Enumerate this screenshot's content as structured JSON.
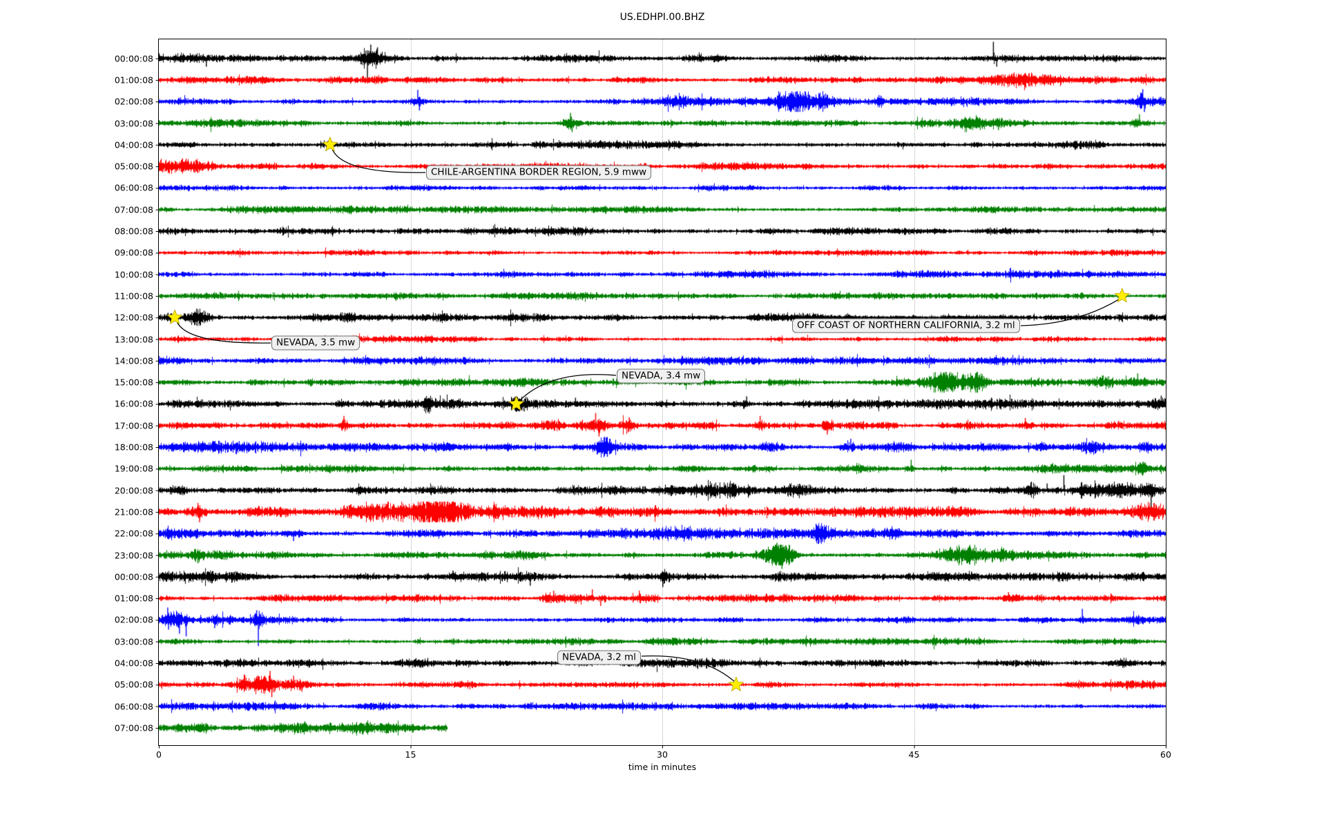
{
  "title": "US.EDHPI.00.BHZ",
  "colors": {
    "trace_cycle": [
      "#000000",
      "#ff0000",
      "#0000ff",
      "#008000"
    ],
    "event_star": "#ffee00",
    "event_star_edge": "#b8a200",
    "annotation_bg": "#f0f0f0",
    "annotation_border": "#6f6f6f",
    "grid": "#b4b4b4"
  },
  "chart_data": {
    "type": "line",
    "subtype": "seismic-dayplot-helicorder",
    "title": "US.EDHPI.00.BHZ",
    "xlabel": "time in minutes",
    "x_range_minutes": [
      0,
      60
    ],
    "x_ticks": [
      0,
      15,
      30,
      45,
      60
    ],
    "grid": "vertical-dotted",
    "trace_colors": [
      "#000000",
      "#ff0000",
      "#0000ff",
      "#008000"
    ],
    "events": [
      {
        "label": "CHILE-ARGENTINA BORDER REGION, 5.9 mww",
        "row": 4,
        "row_time": "04:00:08",
        "minute": 10.2
      },
      {
        "label": "NEVADA, 3.5 mw",
        "row": 12,
        "row_time": "12:00:08",
        "minute": 0.95
      },
      {
        "label": "OFF COAST OF NORTHERN CALIFORNIA, 3.2 ml",
        "row": 11,
        "row_time": "11:00:08",
        "minute": 57.4
      },
      {
        "label": "NEVADA, 3.4 mw",
        "row": 16,
        "row_time": "16:00:08",
        "minute": 21.3
      },
      {
        "label": "NEVADA, 3.2 ml",
        "row": 29,
        "row_time": "05:00:08",
        "minute": 34.4
      }
    ],
    "rows": [
      {
        "label": "00:00:08",
        "base": 2.6,
        "bursts": [
          [
            1.5,
            3.5,
            1.9
          ],
          [
            12.7,
            1.5,
            2.8
          ],
          [
            24.8,
            2,
            1.5
          ],
          [
            32.8,
            1.8,
            1.5
          ]
        ],
        "spikes": [
          [
            2.8,
            -12
          ],
          [
            12.4,
            -28
          ],
          [
            12.6,
            20
          ],
          [
            13.0,
            16
          ],
          [
            49.7,
            24
          ],
          [
            49.9,
            -12
          ]
        ]
      },
      {
        "label": "01:00:08",
        "base": 2.2,
        "bursts": [
          [
            12.5,
            0.8,
            2.2
          ],
          [
            41,
            1,
            1.5
          ],
          [
            51.5,
            2.5,
            2.0
          ],
          [
            58.8,
            0.8,
            1.8
          ]
        ],
        "spikes": [
          [
            51.2,
            9
          ],
          [
            52.8,
            8
          ]
        ]
      },
      {
        "label": "02:00:08",
        "base": 2.5,
        "bursts": [
          [
            15.4,
            0.6,
            2.6
          ],
          [
            30.5,
            3,
            1.4
          ],
          [
            37.8,
            1.4,
            2.6
          ],
          [
            39.4,
            0.8,
            2.2
          ],
          [
            43,
            0.6,
            2.0
          ],
          [
            58.6,
            0.5,
            2.8
          ]
        ],
        "spikes": [
          [
            15.4,
            17
          ],
          [
            15.5,
            -13
          ],
          [
            37.9,
            14
          ],
          [
            58.6,
            18
          ],
          [
            58.7,
            -15
          ]
        ]
      },
      {
        "label": "03:00:08",
        "base": 2.4,
        "bursts": [
          [
            24.5,
            0.6,
            2.8
          ],
          [
            48.5,
            1.8,
            2.2
          ],
          [
            50,
            0.6,
            2.2
          ],
          [
            58.4,
            0.8,
            2.4
          ]
        ],
        "spikes": [
          [
            24.5,
            15
          ],
          [
            24.6,
            -13
          ],
          [
            50,
            -10
          ],
          [
            58.4,
            13
          ]
        ]
      },
      {
        "label": "04:00:08",
        "base": 2.6,
        "bursts": [
          [
            10.2,
            0.6,
            1.7
          ]
        ],
        "spikes": [
          [
            10.2,
            6
          ]
        ]
      },
      {
        "label": "05:00:08",
        "base": 2.3,
        "bursts": [
          [
            0.8,
            2.2,
            2.6
          ],
          [
            2.6,
            1,
            2.0
          ]
        ],
        "spikes": [
          [
            1.6,
            11
          ],
          [
            2.1,
            -9
          ]
        ]
      },
      {
        "label": "06:00:08",
        "base": 2.2,
        "bursts": [],
        "spikes": []
      },
      {
        "label": "07:00:08",
        "base": 2.2,
        "bursts": [
          [
            11.5,
            1,
            1.4
          ]
        ],
        "spikes": []
      },
      {
        "label": "08:00:08",
        "base": 2.4,
        "bursts": [
          [
            20,
            4,
            1.25
          ],
          [
            24.5,
            1.5,
            1.3
          ]
        ],
        "spikes": []
      },
      {
        "label": "09:00:08",
        "base": 2.0,
        "bursts": [],
        "spikes": []
      },
      {
        "label": "10:00:08",
        "base": 2.2,
        "bursts": [],
        "spikes": []
      },
      {
        "label": "11:00:08",
        "base": 2.2,
        "bursts": [],
        "spikes": []
      },
      {
        "label": "12:00:08",
        "base": 2.6,
        "bursts": [
          [
            2.3,
            0.9,
            2.6
          ],
          [
            0.6,
            0.5,
            1.6
          ]
        ],
        "spikes": [
          [
            2.3,
            10
          ],
          [
            2.4,
            -9
          ]
        ]
      },
      {
        "label": "13:00:08",
        "base": 2.0,
        "bursts": [
          [
            38.5,
            0.6,
            1.8
          ],
          [
            50,
            1,
            1.7
          ]
        ],
        "spikes": []
      },
      {
        "label": "14:00:08",
        "base": 2.4,
        "bursts": [
          [
            0.4,
            1.2,
            2.2
          ],
          [
            7.5,
            0.8,
            1.4
          ]
        ],
        "spikes": []
      },
      {
        "label": "15:00:08",
        "base": 2.6,
        "bursts": [
          [
            46.8,
            1.4,
            3.0
          ],
          [
            48.7,
            0.8,
            2.4
          ],
          [
            56.2,
            0.8,
            2.6
          ],
          [
            58.2,
            1.2,
            2.8
          ]
        ],
        "spikes": [
          [
            46.9,
            15
          ],
          [
            56.2,
            10
          ],
          [
            58.3,
            13
          ]
        ]
      },
      {
        "label": "16:00:08",
        "base": 2.8,
        "bursts": [
          [
            11,
            0.5,
            1.8
          ],
          [
            16,
            0.4,
            2.0
          ],
          [
            21.3,
            0.8,
            1.8
          ],
          [
            25,
            6,
            1.35
          ],
          [
            35,
            0.5,
            1.8
          ],
          [
            59.6,
            0.4,
            2.0
          ]
        ],
        "spikes": [
          [
            16,
            -12
          ],
          [
            21.4,
            -10
          ],
          [
            24.8,
            9
          ],
          [
            35,
            11
          ],
          [
            59.7,
            12
          ]
        ]
      },
      {
        "label": "17:00:08",
        "base": 2.5,
        "bursts": [
          [
            11,
            0.4,
            2.6
          ],
          [
            23.5,
            0.8,
            2.4
          ],
          [
            26,
            1.4,
            2.6
          ],
          [
            28,
            0.6,
            2.2
          ],
          [
            33,
            0.5,
            1.8
          ],
          [
            35.8,
            0.4,
            2.4
          ],
          [
            39.8,
            0.5,
            2.2
          ],
          [
            51.6,
            0.6,
            2.2
          ]
        ],
        "spikes": [
          [
            11,
            14
          ],
          [
            26,
            18
          ],
          [
            26.2,
            -16
          ],
          [
            28,
            12
          ],
          [
            35.8,
            14
          ],
          [
            39.8,
            -13
          ],
          [
            51.6,
            11
          ]
        ]
      },
      {
        "label": "18:00:08",
        "base": 2.7,
        "bursts": [
          [
            3,
            4,
            1.5
          ],
          [
            26.5,
            0.8,
            2.8
          ],
          [
            36.5,
            1,
            1.6
          ],
          [
            41.2,
            0.6,
            1.8
          ],
          [
            44.3,
            1,
            1.8
          ],
          [
            52.6,
            0.8,
            2.0
          ],
          [
            55.6,
            0.8,
            1.8
          ],
          [
            58.8,
            0.5,
            2.0
          ]
        ],
        "spikes": [
          [
            26.5,
            12
          ],
          [
            26.7,
            -14
          ],
          [
            41.2,
            12
          ]
        ]
      },
      {
        "label": "19:00:08",
        "base": 2.4,
        "bursts": [
          [
            41.7,
            0.5,
            1.8
          ],
          [
            44.8,
            0.4,
            2.2
          ],
          [
            46.8,
            0.5,
            1.8
          ],
          [
            52.5,
            1,
            1.5
          ],
          [
            58.6,
            0.6,
            1.8
          ]
        ],
        "spikes": [
          [
            44.8,
            13
          ]
        ]
      },
      {
        "label": "20:00:08",
        "base": 2.9,
        "bursts": [
          [
            1,
            1.5,
            1.5
          ],
          [
            24.5,
            0.8,
            1.4
          ],
          [
            31,
            2.5,
            1.7
          ],
          [
            34,
            2.5,
            1.9
          ],
          [
            37,
            2,
            1.8
          ],
          [
            52,
            0.6,
            2.0
          ],
          [
            55.5,
            1.5,
            2.2
          ],
          [
            57,
            2,
            2.4
          ],
          [
            59.3,
            0.7,
            2.2
          ]
        ],
        "spikes": [
          [
            52.9,
            10
          ],
          [
            53.9,
            22
          ],
          [
            59.1,
            -26
          ]
        ]
      },
      {
        "label": "21:00:08",
        "base": 3.1,
        "bursts": [
          [
            2.3,
            0.8,
            3.2
          ],
          [
            13,
            3,
            1.7
          ],
          [
            16.5,
            2,
            2.4
          ],
          [
            20,
            6,
            1.6
          ],
          [
            30,
            4,
            1.4
          ],
          [
            59,
            1.5,
            2.6
          ]
        ],
        "spikes": [
          [
            2.3,
            13
          ],
          [
            2.4,
            -15
          ]
        ]
      },
      {
        "label": "22:00:08",
        "base": 2.9,
        "bursts": [
          [
            1.5,
            3,
            2.0
          ],
          [
            5.6,
            1,
            2.2
          ],
          [
            8,
            0.8,
            2.4
          ],
          [
            31,
            2,
            1.4
          ],
          [
            39.4,
            0.6,
            2.2
          ],
          [
            44,
            1,
            1.7
          ],
          [
            58,
            1.5,
            2.2
          ]
        ],
        "spikes": [
          [
            8,
            -11
          ],
          [
            39.5,
            -12
          ]
        ]
      },
      {
        "label": "23:00:08",
        "base": 2.7,
        "bursts": [
          [
            2.3,
            0.5,
            2.4
          ],
          [
            14,
            1.5,
            1.7
          ],
          [
            37,
            1.2,
            3.6
          ],
          [
            47.8,
            2,
            2.2
          ],
          [
            50.2,
            0.8,
            2.0
          ],
          [
            58.5,
            0.8,
            1.9
          ]
        ],
        "spikes": [
          [
            2.3,
            -12
          ],
          [
            36.8,
            18
          ],
          [
            37.1,
            -20
          ],
          [
            37.3,
            14
          ]
        ]
      },
      {
        "label": "00:00:08",
        "base": 2.9,
        "bursts": [
          [
            1.5,
            4,
            1.8
          ],
          [
            5.5,
            1,
            2.2
          ],
          [
            22,
            0.4,
            1.8
          ],
          [
            30.1,
            0.4,
            2.0
          ]
        ],
        "spikes": [
          [
            17.5,
            9
          ],
          [
            22.1,
            -13
          ],
          [
            30.0,
            -15
          ]
        ]
      },
      {
        "label": "01:00:08",
        "base": 2.3,
        "bursts": [
          [
            23.5,
            1,
            2.0
          ],
          [
            25.5,
            2.2,
            2.4
          ],
          [
            28.5,
            1,
            2.2
          ],
          [
            50.5,
            0.8,
            1.9
          ]
        ],
        "spikes": [
          [
            23.5,
            11
          ],
          [
            25.8,
            13
          ],
          [
            26.3,
            -11
          ],
          [
            28.6,
            11
          ],
          [
            50.6,
            9
          ]
        ]
      },
      {
        "label": "02:00:08",
        "base": 2.5,
        "bursts": [
          [
            0.8,
            1.2,
            2.6
          ],
          [
            3.2,
            0.5,
            2.0
          ],
          [
            5.9,
            0.5,
            2.2
          ],
          [
            55,
            0.5,
            2.2
          ]
        ],
        "spikes": [
          [
            0.5,
            18
          ],
          [
            0.55,
            -14
          ],
          [
            1.2,
            -20
          ],
          [
            1.6,
            -24
          ],
          [
            3.3,
            -12
          ],
          [
            5.8,
            14
          ],
          [
            5.9,
            -38
          ],
          [
            55,
            16
          ]
        ]
      },
      {
        "label": "03:00:08",
        "base": 2.3,
        "bursts": [],
        "spikes": []
      },
      {
        "label": "04:00:08",
        "base": 2.6,
        "bursts": [
          [
            20,
            3,
            1.25
          ]
        ],
        "spikes": []
      },
      {
        "label": "05:00:08",
        "base": 2.3,
        "bursts": [
          [
            5,
            0.8,
            2.6
          ],
          [
            6,
            1,
            3.2
          ],
          [
            6.6,
            0.8,
            3.4
          ],
          [
            8,
            1.2,
            2.4
          ]
        ],
        "spikes": [
          [
            5.1,
            14
          ],
          [
            5.8,
            12
          ],
          [
            6.6,
            20
          ],
          [
            6.7,
            -18
          ],
          [
            8,
            13
          ],
          [
            8.5,
            -10
          ]
        ]
      },
      {
        "label": "06:00:08",
        "base": 2.3,
        "bursts": [],
        "spikes": []
      },
      {
        "label": "07:00:08",
        "base": 3.2,
        "end_minute": 17.2,
        "bursts": [
          [
            8,
            1.5,
            1.3
          ],
          [
            12,
            1,
            1.3
          ]
        ],
        "spikes": []
      }
    ]
  }
}
